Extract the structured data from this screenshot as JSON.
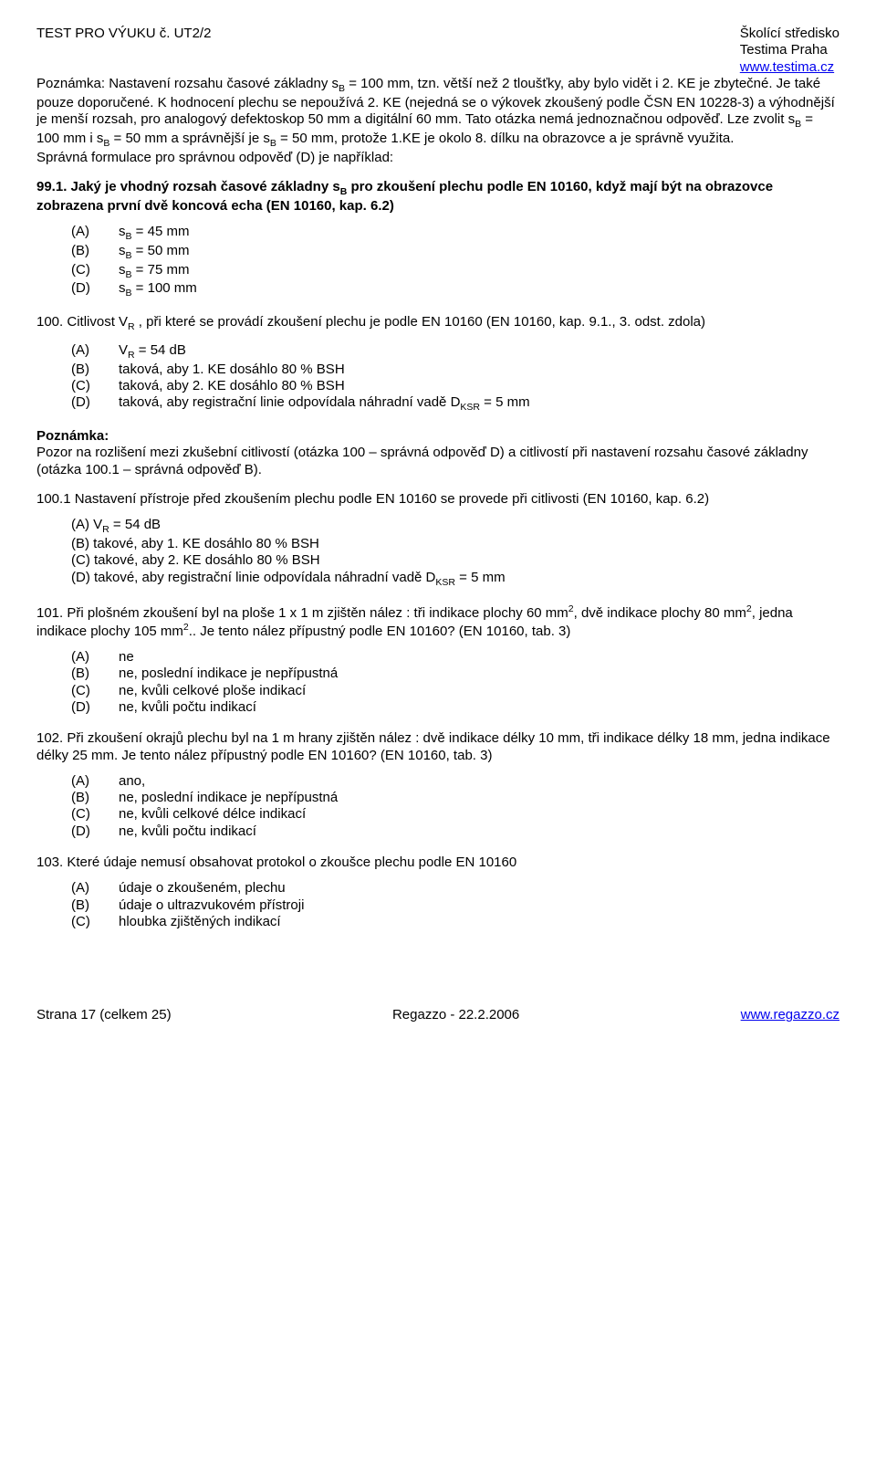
{
  "header": {
    "left": "TEST PRO VÝUKU  č.  UT2/2",
    "right1": "Školící středisko",
    "right2": "Testima Praha",
    "right3": "www.testima.cz"
  },
  "note1": "Poznámka: Nastavení rozsahu časové základny s<sub>B</sub> = 100 mm, tzn. větší než 2 tloušťky, aby bylo vidět i 2. KE je zbytečné. Je také pouze doporučené. K hodnocení plechu se nepoužívá 2. KE (nejedná se o výkovek zkoušený podle ČSN EN 10228-3) a výhodnější je menší rozsah, pro analogový defektoskop 50 mm a digitální 60 mm. Tato otázka nemá jednoznačnou odpověď. Lze zvolit s<sub>B</sub> = 100 mm i s<sub>B</sub> = 50 mm a správnější je s<sub>B</sub> = 50 mm, protože 1.KE je okolo 8. dílku na obrazovce a je správně využita.",
  "note1b": "Správná formulace pro správnou odpověď (D) je například:",
  "q99": {
    "text": "99.1. Jaký je vhodný rozsah časové základny s<sub>B</sub> pro zkoušení plechu podle EN 10160, když mají být na obrazovce zobrazena první dvě koncová echa (EN 10160, kap. 6.2)",
    "opts": {
      "A": "s<sub>B</sub> = 45 mm",
      "B": "s<sub>B</sub> = 50 mm",
      "C": "s<sub>B</sub> = 75 mm",
      "D": "s<sub>B</sub> = 100 mm"
    }
  },
  "q100": {
    "text": "100. Citlivost V<sub>R</sub> , při které se provádí zkoušení plechu je podle EN 10160 (EN 10160, kap. 9.1., 3. odst. zdola)",
    "opts": {
      "A": "V<sub>R</sub> = 54 dB",
      "B": "taková, aby 1. KE dosáhlo 80 % BSH",
      "C": "taková, aby 2. KE dosáhlo 80 % BSH",
      "D": "taková, aby registrační linie odpovídala náhradní vadě D<sub>KSR</sub> = 5 mm"
    }
  },
  "note2_head": "Poznámka:",
  "note2": "Pozor na rozlišení mezi zkušební citlivostí (otázka 100 – správná odpověď D) a citlivostí při nastavení rozsahu časové základny (otázka 100.1 – správná odpověď B).",
  "q100_1": {
    "text": "100.1 Nastavení přístroje před zkoušením plechu podle EN 10160 se provede při citlivosti (EN 10160, kap. 6.2)",
    "opts": {
      "A": "(A) V<sub>R</sub> = 54 dB",
      "B": "(B) takové, aby 1. KE dosáhlo 80 % BSH",
      "C": "(C) takové, aby 2. KE dosáhlo 80 % BSH",
      "D": "(D) takové, aby registrační linie odpovídala náhradní vadě D<sub>KSR</sub> = 5 mm"
    }
  },
  "q101": {
    "text": "101. Při plošném zkoušení byl na ploše 1 x 1 m zjištěn nález : tři indikace plochy 60 mm<sup>2</sup>, dvě indikace plochy 80  mm<sup>2</sup>, jedna indikace plochy 105 mm<sup>2</sup>.. Je tento nález přípustný podle EN 10160? (EN 10160, tab. 3)",
    "opts": {
      "A": "ne",
      "B": "ne, poslední indikace je nepřípustná",
      "C": "ne, kvůli celkové ploše indikací",
      "D": "ne, kvůli počtu indikací"
    }
  },
  "q102": {
    "text": "102. Při zkoušení okrajů plechu byl na 1 m hrany zjištěn nález : dvě indikace délky 10 mm, tři indikace délky 18 mm, jedna indikace délky 25 mm. Je tento nález přípustný podle EN 10160? (EN 10160, tab. 3)",
    "opts": {
      "A": "ano,",
      "B": "ne, poslední indikace je nepřípustná",
      "C": "ne, kvůli celkové délce indikací",
      "D": "ne, kvůli počtu indikací"
    }
  },
  "q103": {
    "text": "103. Které údaje nemusí obsahovat protokol o zkoušce plechu podle EN 10160",
    "opts": {
      "A": "údaje o zkoušeném, plechu",
      "B": "údaje o ultrazvukovém přístroji",
      "C": "hloubka zjištěných indikací"
    }
  },
  "footer": {
    "left": "Strana 17 (celkem 25)",
    "center": "Regazzo -  22.2.2006",
    "right": "www.regazzo.cz"
  }
}
